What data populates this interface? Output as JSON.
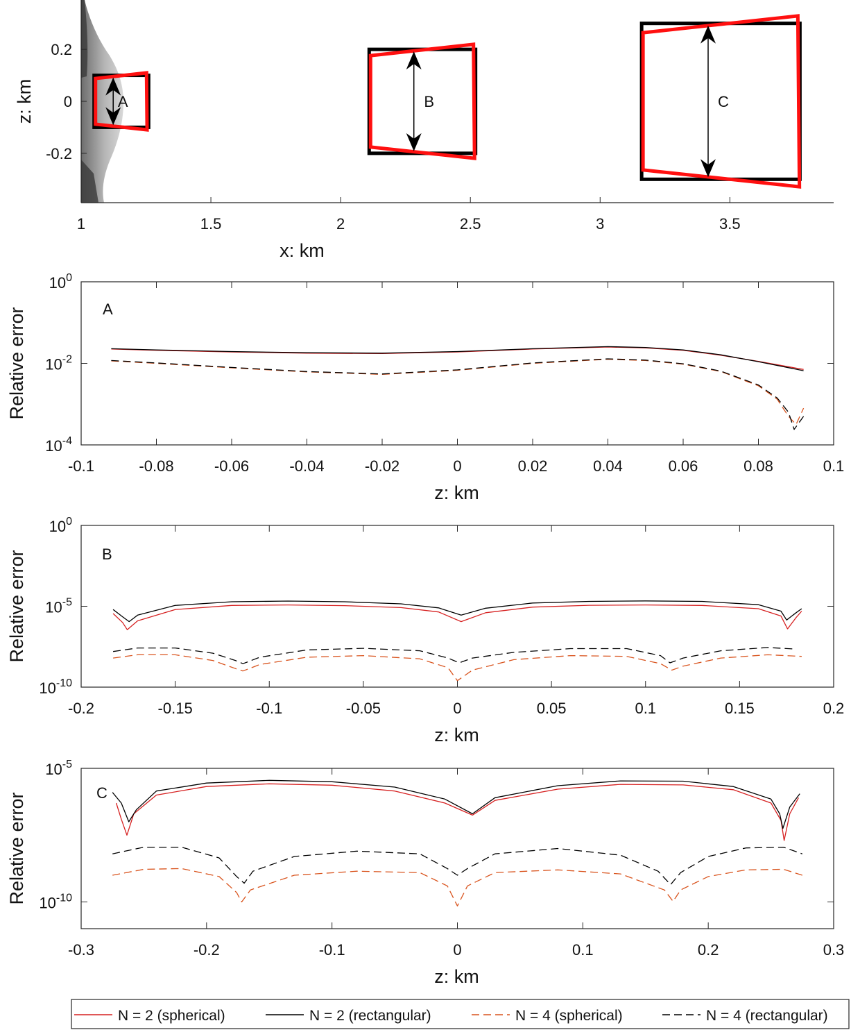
{
  "figure": {
    "colors": {
      "spherical_n2": "#d62020",
      "rectangular_n2": "#000000",
      "spherical_n4": "#d9541e",
      "rectangular_n4": "#000000",
      "frame_black": "#000000",
      "frame_red": "#ff1010",
      "surface": "#9a9a9a"
    }
  },
  "chart_data": [
    {
      "type": "diagram",
      "xlabel": "x: km",
      "ylabel": "z: km",
      "xlim": [
        1,
        3.9
      ],
      "ylim": [
        -0.39,
        0.39
      ],
      "xticks": [
        1,
        1.5,
        2,
        2.5,
        3,
        3.5
      ],
      "xtick_labels": [
        "1",
        "1.5",
        "2",
        "2.5",
        "3",
        "3.5"
      ],
      "yticks": [
        0.2,
        0,
        -0.2
      ],
      "ytick_labels": [
        "0.2",
        "0",
        "-0.2"
      ],
      "regions": [
        {
          "label": "A",
          "x_range": [
            1.05,
            1.26
          ],
          "z_half": 0.1
        },
        {
          "label": "B",
          "x_range": [
            2.11,
            2.52
          ],
          "z_half": 0.2
        },
        {
          "label": "C",
          "x_range": [
            3.16,
            3.77
          ],
          "z_half": 0.3
        }
      ]
    },
    {
      "type": "line",
      "panel": "A",
      "xlabel": "z: km",
      "ylabel": "Relative error",
      "yscale": "log",
      "xlim": [
        -0.1,
        0.1
      ],
      "ylim_exp": [
        -4,
        0
      ],
      "xticks": [
        -0.1,
        -0.08,
        -0.06,
        -0.04,
        -0.02,
        0,
        0.02,
        0.04,
        0.06,
        0.08,
        0.1
      ],
      "xtick_labels": [
        "-0.1",
        "-0.08",
        "-0.06",
        "-0.04",
        "-0.02",
        "0",
        "0.02",
        "0.04",
        "0.06",
        "0.08",
        "0.1"
      ],
      "ytick_exps": [
        0,
        -2,
        -4
      ],
      "series": [
        {
          "name": "N = 2 (spherical)",
          "style": "solid",
          "color_key": "spherical_n2",
          "x": [
            -0.092,
            -0.08,
            -0.06,
            -0.04,
            -0.02,
            0,
            0.02,
            0.04,
            0.05,
            0.06,
            0.07,
            0.08,
            0.092
          ],
          "log10_y": [
            -1.65,
            -1.68,
            -1.72,
            -1.75,
            -1.76,
            -1.72,
            -1.65,
            -1.6,
            -1.62,
            -1.68,
            -1.8,
            -1.95,
            -2.15
          ]
        },
        {
          "name": "N = 2 (rectangular)",
          "style": "solid",
          "color_key": "rectangular_n2",
          "x": [
            -0.092,
            -0.08,
            -0.06,
            -0.04,
            -0.02,
            0,
            0.02,
            0.04,
            0.05,
            0.06,
            0.07,
            0.08,
            0.092
          ],
          "log10_y": [
            -1.64,
            -1.67,
            -1.71,
            -1.74,
            -1.75,
            -1.71,
            -1.64,
            -1.59,
            -1.61,
            -1.67,
            -1.79,
            -1.96,
            -2.18
          ]
        },
        {
          "name": "N = 4 (spherical)",
          "style": "dashed",
          "color_key": "spherical_n4",
          "x": [
            -0.092,
            -0.08,
            -0.06,
            -0.04,
            -0.02,
            0,
            0.02,
            0.04,
            0.05,
            0.06,
            0.07,
            0.08,
            0.085,
            0.088,
            0.09,
            0.092
          ],
          "log10_y": [
            -1.94,
            -2.0,
            -2.11,
            -2.21,
            -2.27,
            -2.17,
            -2.0,
            -1.9,
            -1.93,
            -2.02,
            -2.2,
            -2.55,
            -2.88,
            -3.3,
            -3.5,
            -3.1
          ]
        },
        {
          "name": "N = 4 (rectangular)",
          "style": "dashed",
          "color_key": "rectangular_n4",
          "x": [
            -0.092,
            -0.08,
            -0.06,
            -0.04,
            -0.02,
            0,
            0.02,
            0.04,
            0.05,
            0.06,
            0.07,
            0.08,
            0.085,
            0.088,
            0.0895,
            0.092
          ],
          "log10_y": [
            -1.93,
            -1.99,
            -2.1,
            -2.2,
            -2.26,
            -2.16,
            -1.99,
            -1.89,
            -1.92,
            -2.01,
            -2.19,
            -2.53,
            -2.85,
            -3.2,
            -3.62,
            -3.3
          ]
        }
      ]
    },
    {
      "type": "line",
      "panel": "B",
      "xlabel": "z: km",
      "ylabel": "Relative error",
      "yscale": "log",
      "xlim": [
        -0.2,
        0.2
      ],
      "ylim_exp": [
        -10,
        0
      ],
      "xticks": [
        -0.2,
        -0.15,
        -0.1,
        -0.05,
        0,
        0.05,
        0.1,
        0.15,
        0.2
      ],
      "xtick_labels": [
        "-0.2",
        "-0.15",
        "-0.1",
        "-0.05",
        "0",
        "0.05",
        "0.1",
        "0.15",
        "0.2"
      ],
      "ytick_exps": [
        0,
        -5,
        -10
      ],
      "series": [
        {
          "name": "N = 2 (spherical)",
          "style": "solid",
          "color_key": "spherical_n2",
          "x": [
            -0.183,
            -0.178,
            -0.1755,
            -0.17,
            -0.15,
            -0.12,
            -0.09,
            -0.06,
            -0.03,
            -0.01,
            0.002,
            0.015,
            0.04,
            0.07,
            0.1,
            0.13,
            0.16,
            0.172,
            0.1755,
            0.18,
            0.183
          ],
          "log10_y": [
            -5.45,
            -6.0,
            -6.45,
            -5.9,
            -5.2,
            -4.95,
            -4.92,
            -4.96,
            -5.08,
            -5.35,
            -5.95,
            -5.4,
            -5.05,
            -4.94,
            -4.92,
            -4.95,
            -5.15,
            -5.6,
            -6.4,
            -5.7,
            -5.3
          ]
        },
        {
          "name": "N = 2 (rectangular)",
          "style": "solid",
          "color_key": "rectangular_n2",
          "x": [
            -0.183,
            -0.178,
            -0.1745,
            -0.17,
            -0.15,
            -0.12,
            -0.09,
            -0.06,
            -0.03,
            -0.01,
            0.002,
            0.015,
            0.04,
            0.07,
            0.1,
            0.13,
            0.16,
            0.172,
            0.175,
            0.18,
            0.183
          ],
          "log10_y": [
            -5.2,
            -5.65,
            -5.95,
            -5.55,
            -4.95,
            -4.72,
            -4.68,
            -4.72,
            -4.85,
            -5.1,
            -5.55,
            -5.12,
            -4.8,
            -4.7,
            -4.67,
            -4.7,
            -4.9,
            -5.3,
            -5.85,
            -5.4,
            -5.15
          ]
        },
        {
          "name": "N = 4 (spherical)",
          "style": "dashed",
          "color_key": "spherical_n4",
          "x": [
            -0.183,
            -0.17,
            -0.15,
            -0.13,
            -0.118,
            -0.114,
            -0.105,
            -0.08,
            -0.05,
            -0.02,
            -0.005,
            0,
            0.008,
            0.03,
            0.06,
            0.09,
            0.108,
            0.114,
            0.12,
            0.14,
            0.165,
            0.183
          ],
          "log10_y": [
            -8.2,
            -8.0,
            -8.0,
            -8.35,
            -8.85,
            -9.0,
            -8.6,
            -8.15,
            -8.05,
            -8.25,
            -8.8,
            -9.6,
            -8.95,
            -8.3,
            -8.05,
            -8.1,
            -8.55,
            -8.95,
            -8.7,
            -8.2,
            -8.0,
            -8.1
          ]
        },
        {
          "name": "N = 4 (rectangular)",
          "style": "dashed",
          "color_key": "rectangular_n4",
          "x": [
            -0.183,
            -0.17,
            -0.15,
            -0.13,
            -0.118,
            -0.114,
            -0.105,
            -0.08,
            -0.05,
            -0.02,
            -0.005,
            0.001,
            0.008,
            0.03,
            0.06,
            0.09,
            0.108,
            0.113,
            0.12,
            0.14,
            0.165,
            0.18
          ],
          "log10_y": [
            -7.8,
            -7.58,
            -7.58,
            -7.9,
            -8.35,
            -8.55,
            -8.15,
            -7.7,
            -7.6,
            -7.75,
            -8.2,
            -8.5,
            -8.2,
            -7.85,
            -7.62,
            -7.62,
            -8.05,
            -8.5,
            -8.2,
            -7.75,
            -7.55,
            -7.65
          ]
        }
      ]
    },
    {
      "type": "line",
      "panel": "C",
      "xlabel": "z: km",
      "ylabel": "Relative error",
      "yscale": "log",
      "xlim": [
        -0.3,
        0.3
      ],
      "ylim_exp": [
        -11,
        -5
      ],
      "xticks": [
        -0.3,
        -0.2,
        -0.1,
        0,
        0.1,
        0.2,
        0.3
      ],
      "xtick_labels": [
        "-0.3",
        "-0.2",
        "-0.1",
        "0",
        "0.1",
        "0.2",
        "0.3"
      ],
      "ytick_exps": [
        -5,
        -10
      ],
      "series": [
        {
          "name": "N = 2 (spherical)",
          "style": "solid",
          "color_key": "spherical_n2",
          "x": [
            -0.272,
            -0.268,
            -0.2635,
            -0.258,
            -0.24,
            -0.2,
            -0.15,
            -0.1,
            -0.05,
            -0.01,
            0.012,
            0.03,
            0.08,
            0.13,
            0.18,
            0.22,
            0.25,
            0.258,
            0.2605,
            0.265,
            0.272
          ],
          "log10_y": [
            -6.3,
            -6.9,
            -7.5,
            -6.7,
            -6.0,
            -5.68,
            -5.58,
            -5.63,
            -5.85,
            -6.3,
            -6.75,
            -6.2,
            -5.78,
            -5.6,
            -5.62,
            -5.8,
            -6.3,
            -6.95,
            -7.7,
            -6.7,
            -6.1
          ]
        },
        {
          "name": "N = 2 (rectangular)",
          "style": "solid",
          "color_key": "rectangular_n2",
          "x": [
            -0.275,
            -0.268,
            -0.262,
            -0.256,
            -0.24,
            -0.2,
            -0.15,
            -0.1,
            -0.05,
            -0.01,
            0.012,
            0.03,
            0.08,
            0.13,
            0.18,
            0.22,
            0.25,
            0.257,
            0.2595,
            0.265,
            0.273
          ],
          "log10_y": [
            -5.9,
            -6.3,
            -7.0,
            -6.55,
            -5.85,
            -5.55,
            -5.45,
            -5.5,
            -5.7,
            -6.15,
            -6.7,
            -6.1,
            -5.65,
            -5.47,
            -5.48,
            -5.68,
            -6.15,
            -6.7,
            -7.25,
            -6.45,
            -5.95
          ]
        },
        {
          "name": "N = 4 (spherical)",
          "style": "dashed",
          "color_key": "spherical_n4",
          "x": [
            -0.275,
            -0.25,
            -0.22,
            -0.19,
            -0.176,
            -0.172,
            -0.165,
            -0.13,
            -0.08,
            -0.03,
            -0.008,
            0,
            0.008,
            0.03,
            0.08,
            0.13,
            0.165,
            0.172,
            0.178,
            0.2,
            0.23,
            0.26,
            0.275
          ],
          "log10_y": [
            -9.0,
            -8.78,
            -8.75,
            -9.05,
            -9.65,
            -10.0,
            -9.55,
            -9.0,
            -8.85,
            -8.9,
            -9.4,
            -10.15,
            -9.4,
            -8.9,
            -8.8,
            -8.95,
            -9.55,
            -9.98,
            -9.55,
            -9.05,
            -8.8,
            -8.78,
            -9.0
          ]
        },
        {
          "name": "N = 4 (rectangular)",
          "style": "dashed",
          "color_key": "rectangular_n4",
          "x": [
            -0.275,
            -0.25,
            -0.22,
            -0.19,
            -0.176,
            -0.17,
            -0.163,
            -0.13,
            -0.08,
            -0.03,
            -0.008,
            0,
            0.008,
            0.03,
            0.08,
            0.13,
            0.16,
            0.17,
            0.178,
            0.2,
            0.23,
            0.26,
            0.275
          ],
          "log10_y": [
            -8.2,
            -7.95,
            -7.95,
            -8.35,
            -9.05,
            -9.3,
            -8.85,
            -8.3,
            -8.1,
            -8.2,
            -8.75,
            -9.0,
            -8.75,
            -8.2,
            -8.0,
            -8.25,
            -8.85,
            -9.35,
            -8.9,
            -8.3,
            -7.98,
            -7.95,
            -8.2
          ]
        }
      ]
    }
  ],
  "legend": {
    "entries": [
      {
        "label": "N = 2 (spherical)",
        "style": "solid",
        "color_key": "spherical_n2"
      },
      {
        "label": "N = 2 (rectangular)",
        "style": "solid",
        "color_key": "rectangular_n2"
      },
      {
        "label": "N = 4 (spherical)",
        "style": "dashed",
        "color_key": "spherical_n4"
      },
      {
        "label": "N = 4 (rectangular)",
        "style": "dashed",
        "color_key": "rectangular_n4"
      }
    ]
  }
}
